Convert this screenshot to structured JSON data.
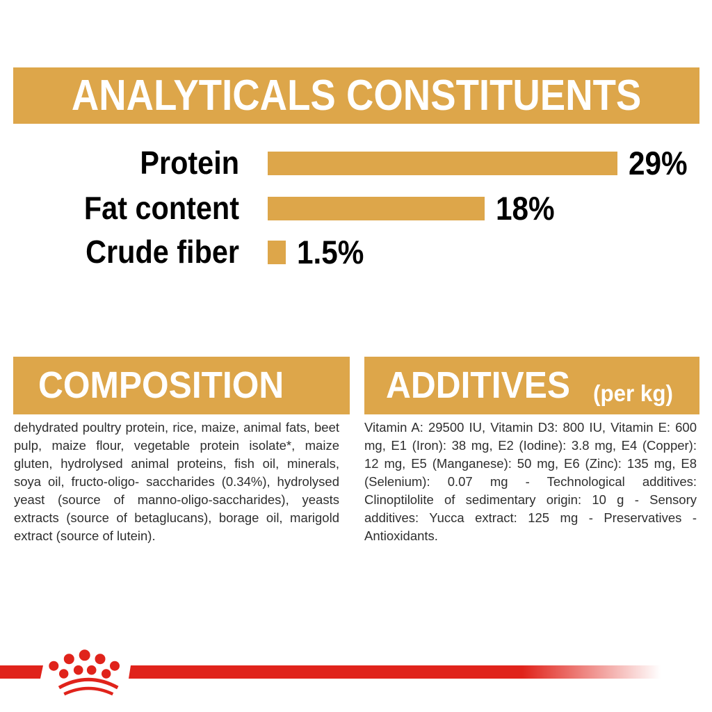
{
  "colors": {
    "gold": "#DDA64A",
    "red": "#E0231B",
    "heading_text": "#000000",
    "body_text": "#2e2e2e",
    "banner_text": "#ffffff"
  },
  "analytics": {
    "title": "ANALYTICALS CONSTITUENTS"
  },
  "chart_data": {
    "type": "bar",
    "orientation": "horizontal",
    "title": "ANALYTICALS CONSTITUENTS",
    "categories": [
      "Protein",
      "Fat content",
      "Crude fiber"
    ],
    "values": [
      29,
      18,
      1.5
    ],
    "value_labels": [
      "29%",
      "18%",
      "1.5%"
    ],
    "unit": "%",
    "xlim": [
      0,
      29
    ],
    "bar_color": "#DDA64A",
    "grid": false,
    "legend": false
  },
  "composition": {
    "title": "COMPOSITION",
    "body": "dehydrated poultry protein, rice, maize, animal fats, beet pulp, maize flour, vegetable protein isolate*, maize gluten, hydrolysed animal proteins, fish oil, minerals, soya oil, fructo-oligo- saccharides (0.34%), hydrolysed yeast (source of manno-oligo-saccharides), yeasts extracts (source of betaglucans), borage oil, marigold extract (source of lutein)."
  },
  "additives": {
    "title": "ADDITIVES",
    "title_suffix": "(per kg)",
    "body": "Vitamin A: 29500 IU, Vitamin D3: 800 IU, Vitamin E: 600 mg, E1 (Iron): 38 mg, E2 (Iodine): 3.8 mg, E4 (Copper): 12 mg, E5 (Manganese): 50 mg, E6 (Zinc): 135 mg, E8 (Selenium): 0.07 mg - Technological additives: Clinoptilolite of sedimentary origin: 10 g - Sensory additives: Yucca extract: 125 mg - Preservatives - Antioxidants."
  },
  "footer": {
    "logo": "royal-canin-crown"
  }
}
